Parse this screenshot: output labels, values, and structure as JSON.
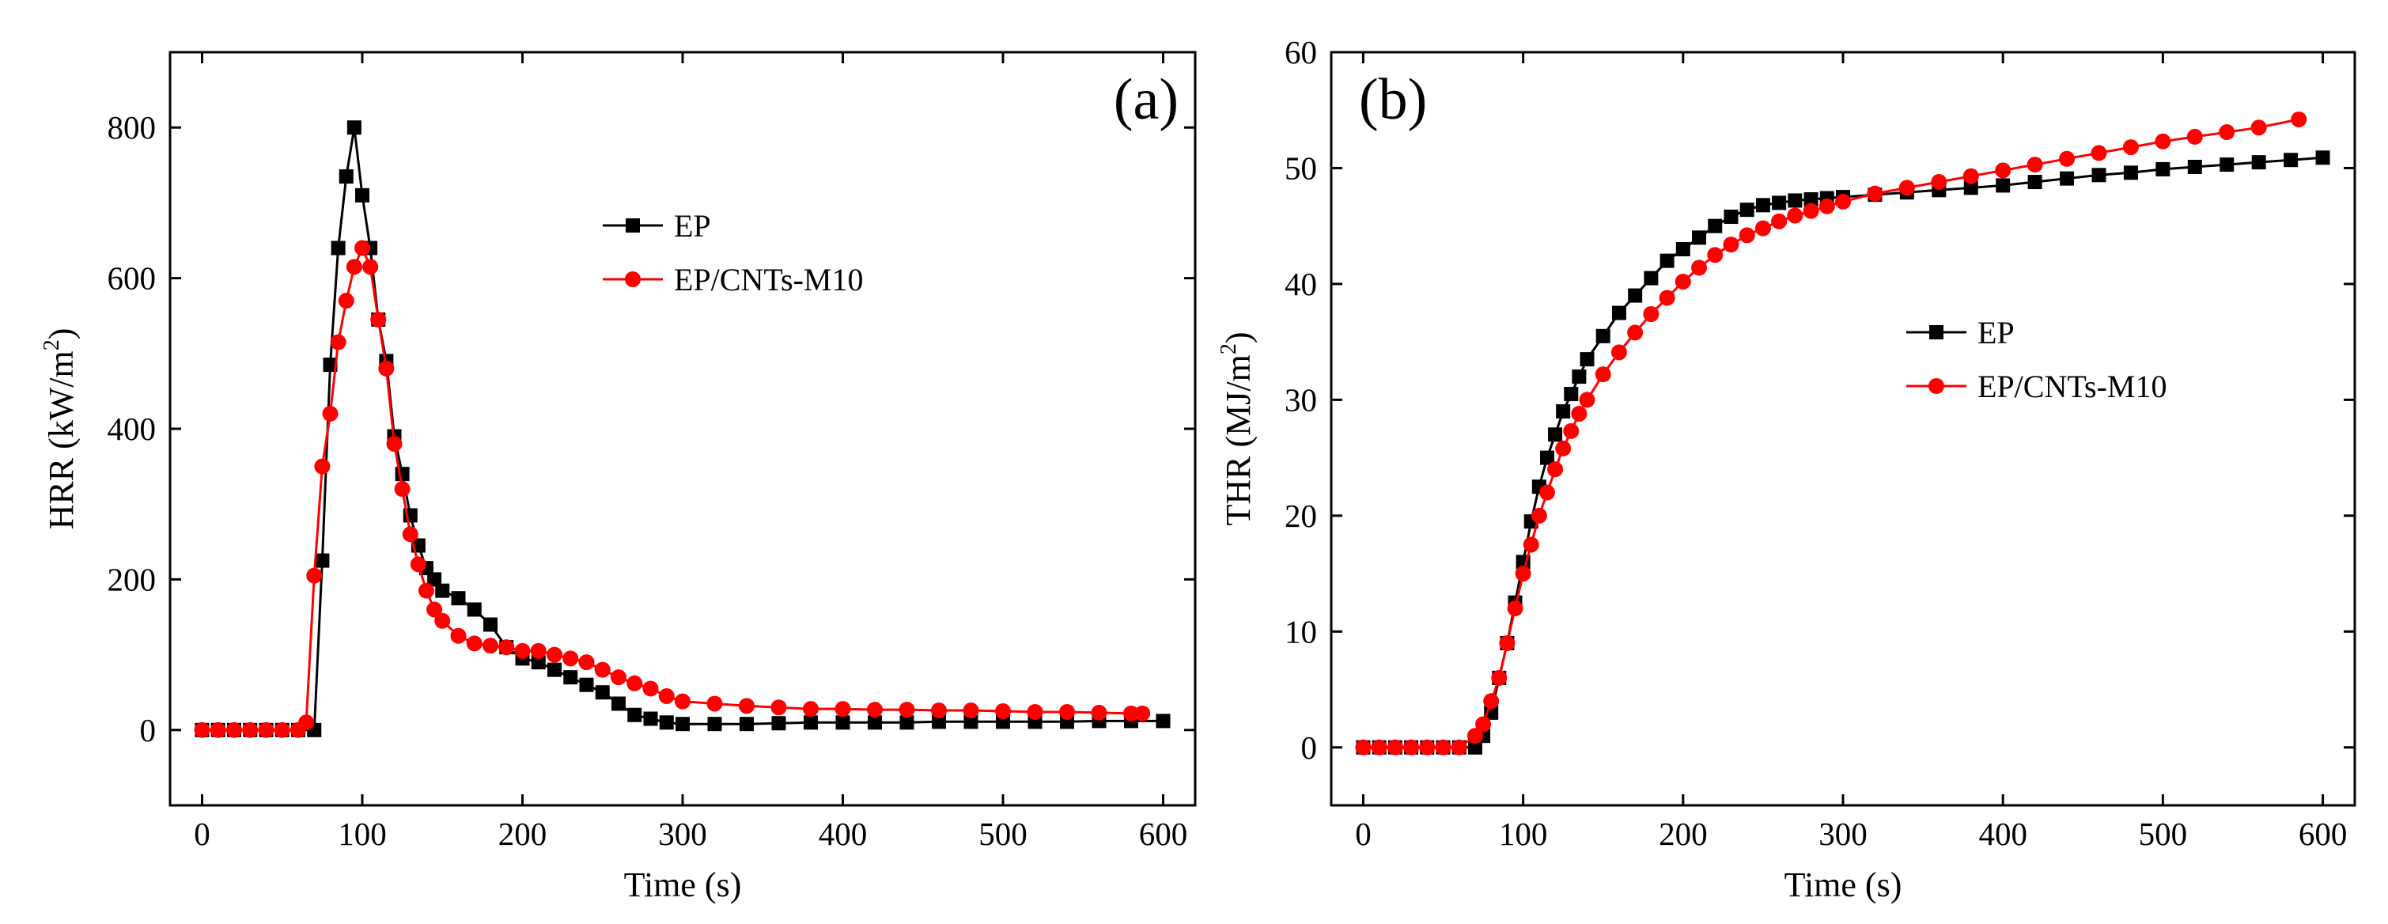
{
  "chart_data": [
    {
      "type": "line",
      "panel_label": "(a)",
      "xlabel": "Time (s)",
      "ylabel": "HRR (kW/m²)",
      "ylabel_main": "HRR (kW/m",
      "ylabel_sup": "2",
      "ylabel_end": ")",
      "xlim": [
        -20,
        620
      ],
      "ylim": [
        -100,
        900
      ],
      "xticks": [
        0,
        100,
        200,
        300,
        400,
        500,
        600
      ],
      "yticks": [
        0,
        200,
        400,
        600,
        800
      ],
      "legend_position": "upper-middle-right",
      "series": [
        {
          "name": "EP",
          "color": "#000000",
          "marker": "square",
          "x": [
            0,
            10,
            20,
            30,
            40,
            50,
            60,
            70,
            75,
            80,
            85,
            90,
            95,
            100,
            105,
            110,
            115,
            120,
            125,
            130,
            135,
            140,
            145,
            150,
            160,
            170,
            180,
            190,
            200,
            210,
            220,
            230,
            240,
            250,
            260,
            270,
            280,
            290,
            300,
            320,
            340,
            360,
            380,
            400,
            420,
            440,
            460,
            480,
            500,
            520,
            540,
            560,
            580,
            600
          ],
          "values": [
            0,
            0,
            0,
            0,
            0,
            0,
            0,
            0,
            225,
            485,
            640,
            735,
            800,
            710,
            640,
            545,
            490,
            390,
            340,
            285,
            245,
            215,
            200,
            185,
            175,
            160,
            140,
            110,
            95,
            90,
            80,
            70,
            60,
            50,
            35,
            20,
            15,
            10,
            8,
            8,
            8,
            9,
            10,
            10,
            10,
            10,
            11,
            11,
            11,
            11,
            11,
            12,
            12,
            12
          ]
        },
        {
          "name": "EP/CNTs-M10",
          "color": "#ff0000",
          "marker": "circle",
          "x": [
            0,
            10,
            20,
            30,
            40,
            50,
            60,
            65,
            70,
            75,
            80,
            85,
            90,
            95,
            100,
            105,
            110,
            115,
            120,
            125,
            130,
            135,
            140,
            145,
            150,
            160,
            170,
            180,
            190,
            200,
            210,
            220,
            230,
            240,
            250,
            260,
            270,
            280,
            290,
            300,
            320,
            340,
            360,
            380,
            400,
            420,
            440,
            460,
            480,
            500,
            520,
            540,
            560,
            580,
            587
          ],
          "values": [
            0,
            0,
            0,
            0,
            0,
            0,
            0,
            10,
            205,
            350,
            420,
            515,
            570,
            615,
            640,
            615,
            545,
            480,
            380,
            320,
            260,
            220,
            185,
            160,
            145,
            125,
            115,
            112,
            110,
            105,
            105,
            100,
            95,
            90,
            80,
            70,
            62,
            55,
            45,
            38,
            35,
            32,
            30,
            28,
            28,
            27,
            27,
            26,
            26,
            25,
            24,
            24,
            23,
            22,
            22
          ]
        }
      ]
    },
    {
      "type": "line",
      "panel_label": "(b)",
      "xlabel": "Time (s)",
      "ylabel": "THR (MJ/m²)",
      "ylabel_main": "THR (MJ/m",
      "ylabel_sup": "2",
      "ylabel_end": ")",
      "xlim": [
        -20,
        620
      ],
      "ylim": [
        -5,
        60
      ],
      "xticks": [
        0,
        100,
        200,
        300,
        400,
        500,
        600
      ],
      "yticks": [
        0,
        10,
        20,
        30,
        40,
        50,
        60
      ],
      "legend_position": "center-right",
      "series": [
        {
          "name": "EP",
          "color": "#000000",
          "marker": "square",
          "x": [
            0,
            10,
            20,
            30,
            40,
            50,
            60,
            70,
            75,
            80,
            85,
            90,
            95,
            100,
            105,
            110,
            115,
            120,
            125,
            130,
            135,
            140,
            150,
            160,
            170,
            180,
            190,
            200,
            210,
            220,
            230,
            240,
            250,
            260,
            270,
            280,
            290,
            300,
            320,
            340,
            360,
            380,
            400,
            420,
            440,
            460,
            480,
            500,
            520,
            540,
            560,
            580,
            600
          ],
          "values": [
            0,
            0,
            0,
            0,
            0,
            0,
            0,
            0,
            1,
            3,
            6,
            9,
            12.5,
            16,
            19.5,
            22.5,
            25,
            27,
            29,
            30.5,
            32,
            33.5,
            35.5,
            37.5,
            39,
            40.5,
            42,
            43,
            44,
            45,
            45.8,
            46.4,
            46.8,
            47,
            47.2,
            47.3,
            47.4,
            47.5,
            47.7,
            47.9,
            48.1,
            48.3,
            48.5,
            48.8,
            49.1,
            49.4,
            49.6,
            49.9,
            50.1,
            50.3,
            50.5,
            50.7,
            50.9
          ]
        },
        {
          "name": "EP/CNTs-M10",
          "color": "#ff0000",
          "marker": "circle",
          "x": [
            0,
            10,
            20,
            30,
            40,
            50,
            60,
            70,
            75,
            80,
            85,
            90,
            95,
            100,
            105,
            110,
            115,
            120,
            125,
            130,
            135,
            140,
            150,
            160,
            170,
            180,
            190,
            200,
            210,
            220,
            230,
            240,
            250,
            260,
            270,
            280,
            290,
            300,
            320,
            340,
            360,
            380,
            400,
            420,
            440,
            460,
            480,
            500,
            520,
            540,
            560,
            585
          ],
          "values": [
            0,
            0,
            0,
            0,
            0,
            0,
            0,
            1,
            2,
            4,
            6,
            9,
            12,
            15,
            17.5,
            20,
            22,
            24,
            25.8,
            27.3,
            28.8,
            30,
            32.2,
            34.1,
            35.8,
            37.4,
            38.8,
            40.2,
            41.4,
            42.5,
            43.4,
            44.2,
            44.8,
            45.4,
            45.9,
            46.3,
            46.7,
            47.1,
            47.8,
            48.3,
            48.8,
            49.3,
            49.8,
            50.3,
            50.8,
            51.3,
            51.8,
            52.3,
            52.7,
            53.1,
            53.5,
            54.2
          ]
        }
      ]
    }
  ]
}
